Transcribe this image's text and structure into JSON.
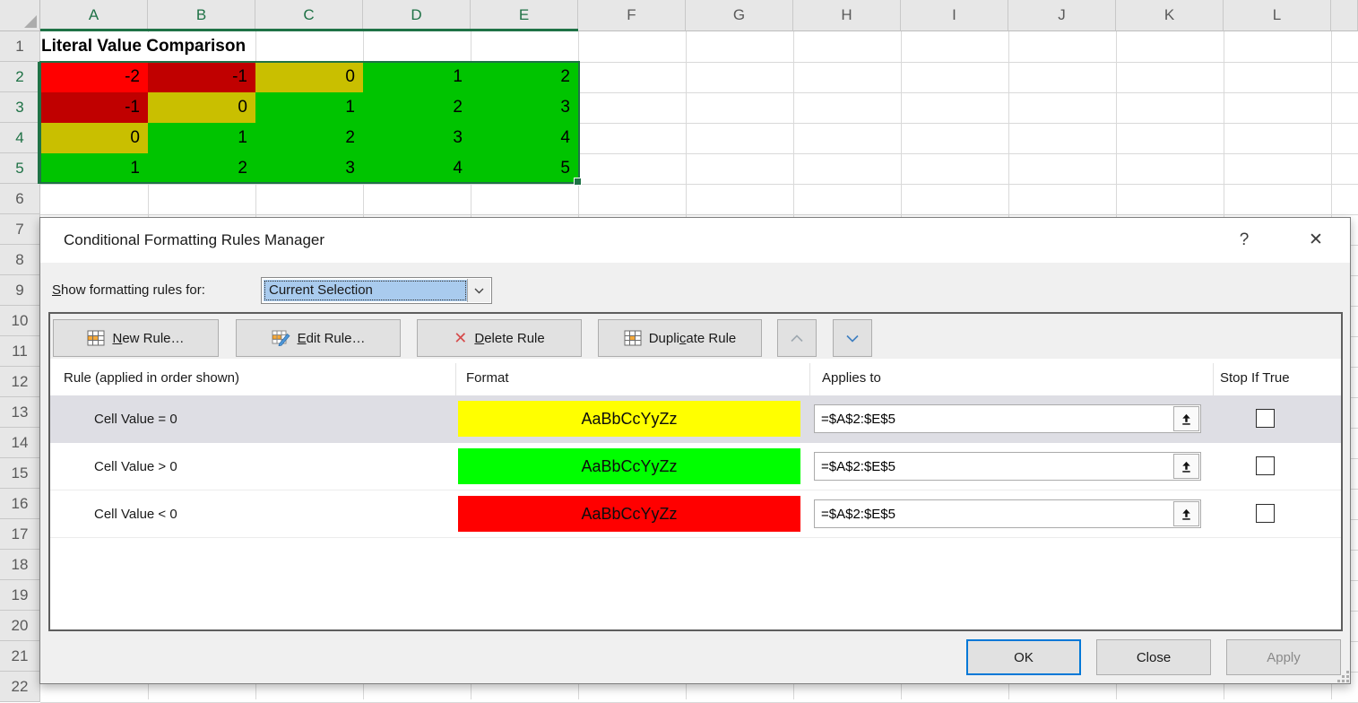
{
  "spreadsheet": {
    "column_letters": [
      "A",
      "B",
      "C",
      "D",
      "E",
      "F",
      "G",
      "H",
      "I",
      "J",
      "K",
      "L"
    ],
    "visible_row_count": 22,
    "selected_columns": [
      "A",
      "B",
      "C",
      "D",
      "E"
    ],
    "selected_rows": [
      2,
      3,
      4,
      5
    ],
    "title_cell": "Literal Value Comparison",
    "grid_values": [
      [
        -2,
        -1,
        0,
        1,
        2
      ],
      [
        -1,
        0,
        1,
        2,
        3
      ],
      [
        0,
        1,
        2,
        3,
        4
      ],
      [
        1,
        2,
        3,
        4,
        5
      ]
    ],
    "grid_fills": [
      [
        "activeRed",
        "red",
        "yellow",
        "green",
        "green"
      ],
      [
        "red",
        "yellow",
        "green",
        "green",
        "green"
      ],
      [
        "yellow",
        "green",
        "green",
        "green",
        "green"
      ],
      [
        "green",
        "green",
        "green",
        "green",
        "green"
      ]
    ],
    "fill_colors": {
      "activeRed": "#FF0000",
      "red": "#C00000",
      "yellow": "#C9BF00",
      "green": "#00C400"
    },
    "selection_color": "#1F7246"
  },
  "dialog": {
    "title": "Conditional Formatting Rules Manager",
    "icons": {
      "help": "?",
      "close": "✕",
      "delete": "✕"
    },
    "show_rules_label": {
      "pre": "",
      "key": "S",
      "post": "how formatting rules for:"
    },
    "scope_dropdown": {
      "value": "Current Selection"
    },
    "toolbar": {
      "new_rule": {
        "pre": "",
        "key": "N",
        "post": "ew Rule…"
      },
      "edit_rule": {
        "pre": "",
        "key": "E",
        "post": "dit Rule…"
      },
      "delete_rule": {
        "pre": "",
        "key": "D",
        "post": "elete Rule"
      },
      "duplicate_rule": {
        "pre": "Dupli",
        "key": "c",
        "post": "ate Rule"
      }
    },
    "list_headers": {
      "rule": "Rule (applied in order shown)",
      "format": "Format",
      "applies_to": "Applies to",
      "stop_if_true": "Stop If True"
    },
    "rules": [
      {
        "condition": "Cell Value = 0",
        "preview_text": "AaBbCcYyZz",
        "fill": "#FFFF00",
        "applies_to": "=$A$2:$E$5",
        "stop_if_true": false,
        "selected": true
      },
      {
        "condition": "Cell Value > 0",
        "preview_text": "AaBbCcYyZz",
        "fill": "#00FF00",
        "applies_to": "=$A$2:$E$5",
        "stop_if_true": false,
        "selected": false
      },
      {
        "condition": "Cell Value < 0",
        "preview_text": "AaBbCcYyZz",
        "fill": "#FF0000",
        "applies_to": "=$A$2:$E$5",
        "stop_if_true": false,
        "selected": false
      }
    ],
    "footer": {
      "ok": "OK",
      "close": "Close",
      "apply": "Apply"
    }
  }
}
